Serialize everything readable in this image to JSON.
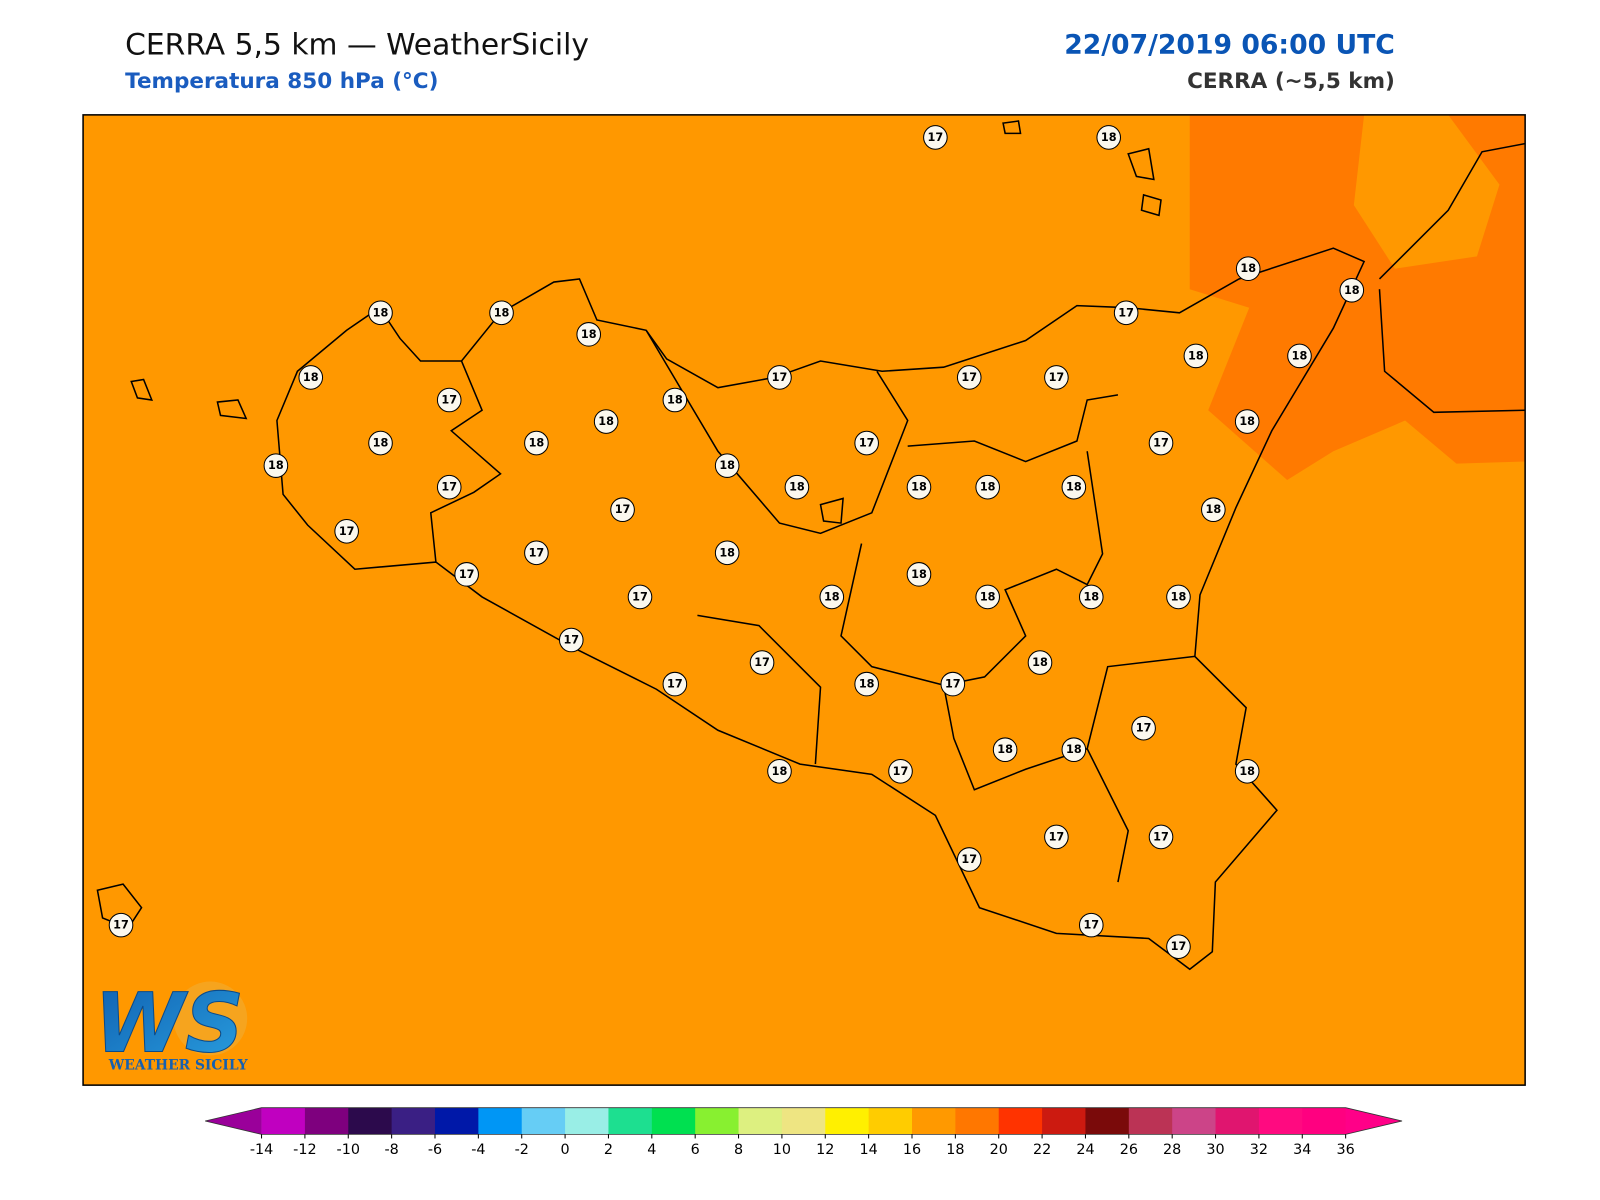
{
  "header": {
    "title": "CERRA 5,5 km — WeatherSicily",
    "subtitle": "Temperatura 850 hPa (°C)",
    "datetime": "22/07/2019 06:00 UTC",
    "model": "CERRA (~5,5 km)"
  },
  "map": {
    "background_color": "#ff9800",
    "warm_color": "#ff7a00"
  },
  "stations": [
    17,
    18,
    18,
    18,
    18,
    18,
    18,
    17,
    18,
    17,
    17,
    17,
    18,
    18,
    17,
    18,
    18,
    18,
    18,
    18,
    17,
    17,
    18,
    18,
    17,
    18,
    18,
    18,
    18,
    17,
    18,
    17,
    17,
    18,
    17,
    18,
    17,
    18,
    18,
    18,
    18,
    17,
    17,
    18,
    17,
    18,
    17,
    17,
    18,
    18,
    18,
    17,
    18,
    17,
    17,
    17,
    17,
    17,
    17
  ],
  "colorbar": {
    "ticks": [
      -14,
      -12,
      -10,
      -8,
      -6,
      -4,
      -2,
      0,
      2,
      4,
      6,
      8,
      10,
      12,
      14,
      16,
      18,
      20,
      22,
      24,
      26,
      28,
      30,
      32,
      34,
      36
    ],
    "colors": [
      "#c000c0",
      "#7e007e",
      "#2c0a4c",
      "#3a1f84",
      "#0018a8",
      "#0096f5",
      "#66cdf5",
      "#99eee6",
      "#1ddf90",
      "#00e050",
      "#88f030",
      "#ddf080",
      "#eee582",
      "#fff000",
      "#ffcc00",
      "#ff9900",
      "#ff7700",
      "#ff3300",
      "#cc1a10",
      "#7a0a0a",
      "#bb3355",
      "#cc4488",
      "#e0156f",
      "#ff0a80",
      "#ff0080"
    ],
    "under_color": "#9a009a",
    "over_color": "#ff0088"
  },
  "logo": {
    "mark": "WS",
    "text": "WEATHER SICILY"
  }
}
